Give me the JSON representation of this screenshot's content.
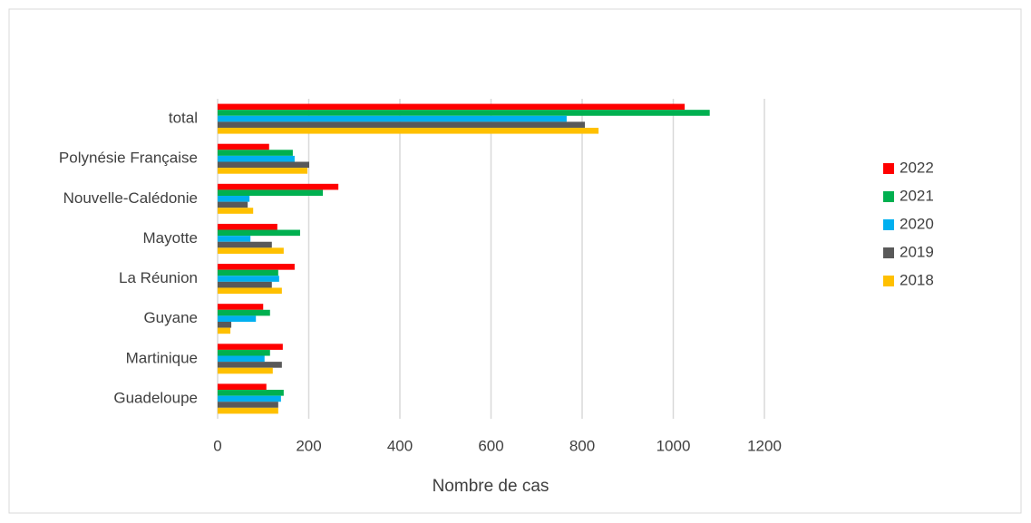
{
  "chart_data": {
    "type": "hbar",
    "categories": [
      "total",
      "Polynésie Française",
      "Nouvelle-Calédonie",
      "Mayotte",
      "La Réunion",
      "Guyane",
      "Martinique",
      "Guadeloupe"
    ],
    "series": [
      {
        "name": "2022",
        "color": "#ff0000",
        "values": [
          1025,
          113,
          265,
          131,
          169,
          100,
          143,
          107
        ]
      },
      {
        "name": "2021",
        "color": "#00b050",
        "values": [
          1080,
          165,
          231,
          181,
          133,
          115,
          115,
          145
        ]
      },
      {
        "name": "2020",
        "color": "#00b0f0",
        "values": [
          766,
          169,
          70,
          72,
          135,
          84,
          103,
          139
        ]
      },
      {
        "name": "2019",
        "color": "#595959",
        "values": [
          806,
          201,
          66,
          119,
          119,
          30,
          141,
          133
        ]
      },
      {
        "name": "2018",
        "color": "#ffc000",
        "values": [
          836,
          197,
          78,
          145,
          141,
          28,
          121,
          133
        ]
      }
    ],
    "xlabel": "Nombre de cas",
    "xlim": [
      0,
      1200
    ],
    "xticks": [
      0,
      200,
      400,
      600,
      800,
      1000,
      1200
    ],
    "grid": true,
    "legend": "right"
  }
}
